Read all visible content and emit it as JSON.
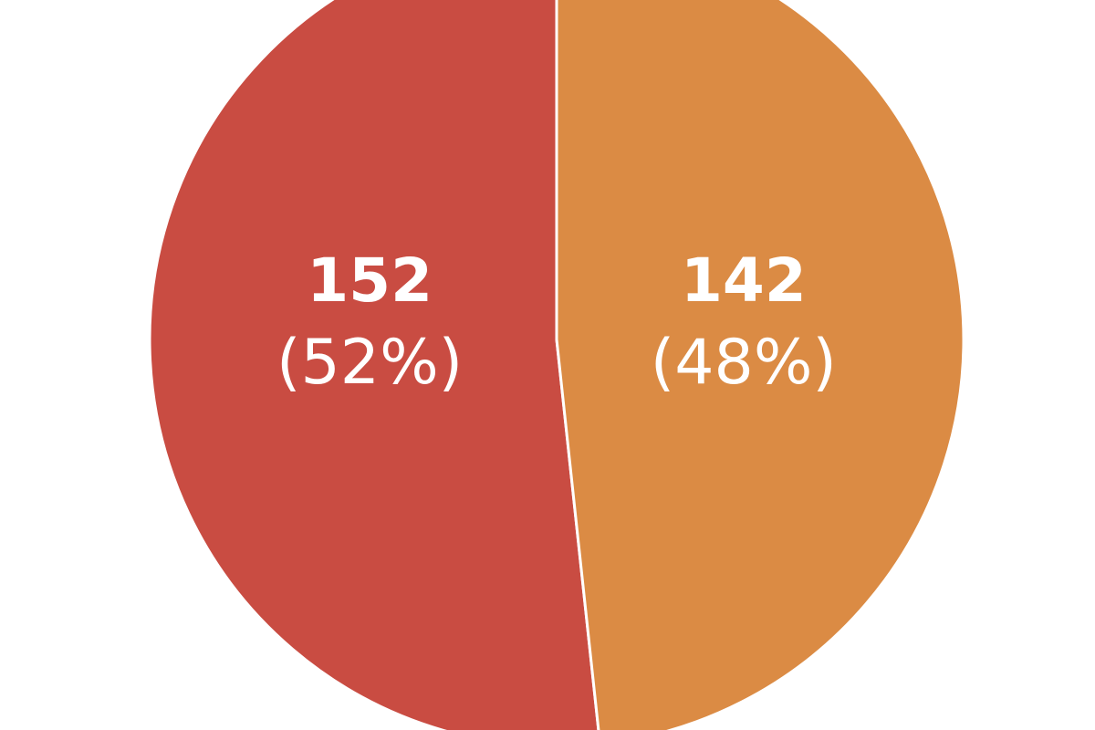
{
  "chart_data": {
    "type": "pie",
    "slices": [
      {
        "value": 152,
        "value_label": "152",
        "percent_label": "(52%)",
        "color": "#c94c42"
      },
      {
        "value": 142,
        "value_label": "142",
        "percent_label": "(48%)",
        "color": "#db8b44"
      }
    ],
    "start_angle_deg": 0,
    "direction": "counterclockwise"
  }
}
